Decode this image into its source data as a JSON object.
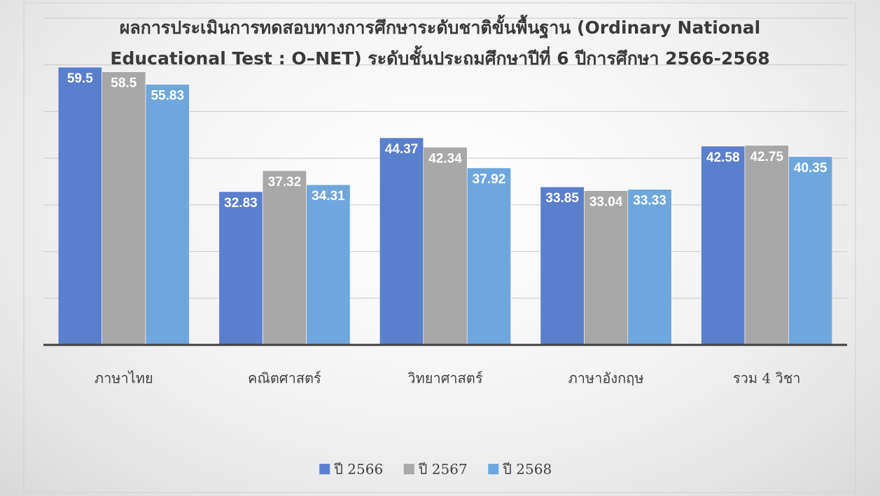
{
  "chart_data": {
    "type": "bar",
    "title": "ผลการประเมินการทดสอบทางการศึกษาระดับชาติขั้นพื้นฐาน (Ordinary National Educational Test : O–NET) ระดับชั้นประถมศึกษาปีที่ 6 ปีการศึกษา 2566-2568",
    "categories": [
      "ภาษาไทย",
      "คณิตศาสตร์",
      "วิทยาศาสตร์",
      "ภาษาอังกฤษ",
      "รวม 4 วิชา"
    ],
    "series": [
      {
        "name": "ปี 2566",
        "color": "#5a7fcd",
        "values": [
          59.5,
          32.83,
          44.37,
          33.85,
          42.58
        ]
      },
      {
        "name": "ปี 2567",
        "color": "#a8a8a8",
        "values": [
          58.5,
          37.32,
          42.34,
          33.04,
          42.75
        ]
      },
      {
        "name": "ปี 2568",
        "color": "#6fa7dd",
        "values": [
          55.83,
          34.31,
          37.92,
          33.33,
          40.35
        ]
      }
    ],
    "ylim": [
      0,
      70
    ],
    "yticks": [
      0,
      10,
      20,
      30,
      40,
      50,
      60,
      70
    ],
    "grid": true,
    "legend": "bottom"
  }
}
